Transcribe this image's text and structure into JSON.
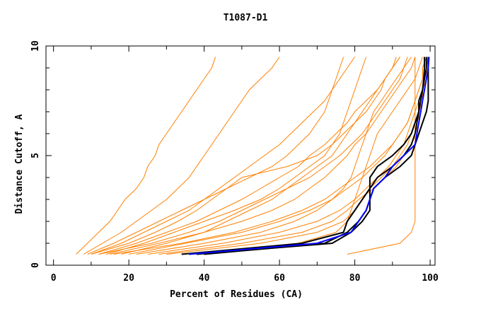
{
  "chart_data": {
    "type": "line",
    "title": "T1087-D1",
    "xlabel": "Percent of Residues (CA)",
    "ylabel": "Distance Cutoff, A",
    "xlim": [
      -2,
      101.3
    ],
    "ylim": [
      0,
      10
    ],
    "x_ticks": [
      0,
      20,
      40,
      60,
      80,
      100
    ],
    "y_ticks": [
      0,
      5,
      10
    ],
    "grid": false,
    "legend": "none",
    "colors": {
      "models": "#ff8000",
      "top_models": "#000000",
      "best_model": "#0000ff"
    },
    "cutoffs": [
      0.5,
      1,
      1.5,
      2,
      2.5,
      3,
      3.5,
      4,
      4.5,
      5,
      5.5,
      6,
      6.5,
      7,
      7.5,
      8,
      8.5,
      9,
      9.5
    ],
    "series": [
      {
        "group": "models",
        "x": [
          6,
          9,
          12,
          15,
          17,
          19,
          22,
          24,
          25,
          27,
          28,
          30,
          32,
          34,
          36,
          38,
          40,
          42,
          43
        ]
      },
      {
        "group": "models",
        "x": [
          8,
          13,
          18,
          22,
          26,
          30,
          33,
          36,
          38,
          40,
          42,
          44,
          46,
          48,
          50,
          52,
          55,
          58,
          60
        ]
      },
      {
        "group": "models",
        "x": [
          10,
          18,
          24,
          30,
          36,
          40,
          44,
          48,
          52,
          56,
          60,
          63,
          66,
          69,
          72,
          74,
          76,
          78,
          80
        ]
      },
      {
        "group": "models",
        "x": [
          12,
          22,
          30,
          38,
          44,
          50,
          55,
          60,
          65,
          68,
          72,
          75,
          78,
          80,
          83,
          86,
          88,
          90,
          92
        ]
      },
      {
        "group": "models",
        "x": [
          15,
          28,
          40,
          50,
          58,
          64,
          68,
          72,
          75,
          78,
          80,
          83,
          85,
          87,
          89,
          91,
          93,
          95,
          96
        ]
      },
      {
        "group": "models",
        "x": [
          20,
          35,
          50,
          60,
          68,
          74,
          78,
          82,
          85,
          88,
          90,
          92,
          94,
          95,
          96,
          97,
          98,
          98,
          99
        ]
      },
      {
        "group": "models",
        "x": [
          25,
          45,
          60,
          70,
          76,
          80,
          83,
          86,
          89,
          91,
          93,
          94,
          95,
          96,
          97,
          98,
          98.5,
          99,
          99
        ]
      },
      {
        "group": "models",
        "x": [
          30,
          55,
          70,
          77,
          80,
          82,
          84,
          87,
          90,
          92,
          94,
          95,
          96,
          97,
          97.5,
          98,
          98.5,
          99,
          99.5
        ]
      },
      {
        "group": "models",
        "x": [
          10,
          20,
          27,
          33,
          38,
          42,
          46,
          50,
          62,
          70,
          74,
          77,
          80,
          83,
          85,
          87,
          88,
          90,
          91
        ]
      },
      {
        "group": "models",
        "x": [
          18,
          30,
          40,
          46,
          52,
          58,
          62,
          66,
          70,
          74,
          76,
          78,
          80,
          82,
          84,
          86,
          88,
          90,
          92
        ]
      },
      {
        "group": "models",
        "x": [
          14,
          24,
          32,
          40,
          48,
          55,
          60,
          64,
          68,
          72,
          74,
          76,
          77,
          78,
          79,
          80,
          81,
          82,
          83
        ]
      },
      {
        "group": "models",
        "x": [
          22,
          40,
          55,
          64,
          70,
          74,
          77,
          79,
          80,
          81,
          82,
          83,
          84,
          85,
          87,
          89,
          91,
          93,
          95
        ]
      },
      {
        "group": "models",
        "x": [
          40,
          65,
          75,
          78,
          79,
          80,
          81,
          82,
          83,
          84,
          85,
          86,
          88,
          90,
          92,
          94,
          96,
          97,
          98
        ]
      },
      {
        "group": "models",
        "x": [
          9,
          16,
          22,
          28,
          34,
          40,
          46,
          52,
          58,
          62,
          65,
          68,
          70,
          72,
          73,
          74,
          75,
          76,
          77
        ]
      },
      {
        "group": "models",
        "x": [
          12,
          26,
          36,
          44,
          50,
          56,
          62,
          68,
          72,
          76,
          79,
          82,
          84,
          86,
          88,
          90,
          92,
          93,
          94
        ]
      },
      {
        "group": "models",
        "x": [
          78,
          92,
          95,
          96,
          96,
          96,
          96,
          96,
          96,
          96,
          96,
          96,
          96,
          96,
          96,
          96,
          96,
          96,
          96
        ]
      },
      {
        "group": "models",
        "x": [
          28,
          50,
          66,
          74,
          78,
          81,
          85,
          88,
          91,
          93,
          95,
          96,
          97,
          97,
          98,
          98,
          99,
          99,
          99
        ]
      },
      {
        "group": "models",
        "x": [
          16,
          34,
          48,
          58,
          66,
          72,
          76,
          80,
          84,
          87,
          90,
          92,
          94,
          95,
          96,
          97,
          98,
          98,
          99
        ]
      },
      {
        "group": "top_models",
        "x": [
          34,
          66,
          77,
          78,
          80,
          82,
          84,
          84,
          86,
          90,
          93,
          95,
          96,
          97,
          97.5,
          98,
          98.3,
          98.5,
          98.5
        ]
      },
      {
        "group": "top_models",
        "x": [
          38,
          74,
          79,
          82,
          84,
          84,
          84,
          86,
          90,
          93,
          95,
          96,
          96.5,
          97,
          97,
          98,
          98.5,
          99,
          99
        ]
      },
      {
        "group": "top_models",
        "x": [
          40,
          72,
          78,
          81,
          83,
          84,
          85,
          88,
          92,
          95,
          96,
          97,
          98,
          99,
          99.5,
          99.5,
          99.5,
          99.5,
          99.5
        ]
      },
      {
        "group": "best_model",
        "x": [
          36,
          70,
          79,
          81,
          83,
          84,
          85,
          88,
          90,
          93,
          96,
          96.5,
          97,
          97.5,
          98,
          98.5,
          99,
          99.5,
          99.7
        ]
      }
    ]
  }
}
